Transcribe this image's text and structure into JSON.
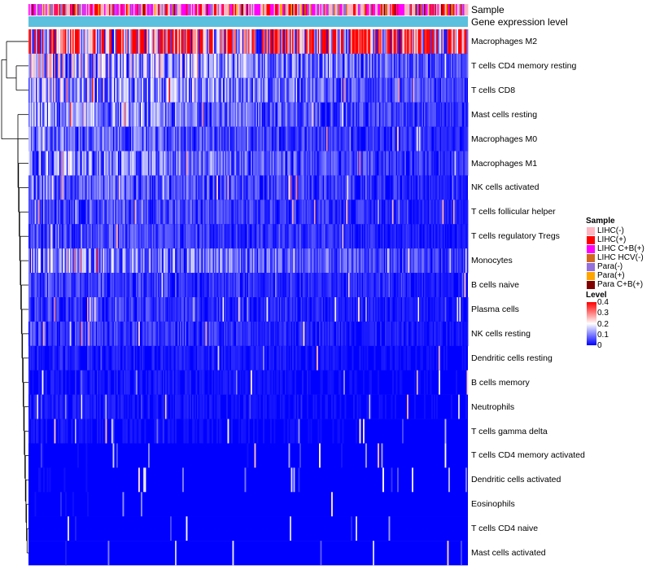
{
  "chart_data": {
    "type": "heatmap",
    "title": "",
    "annotation_rows": [
      "Sample",
      "Gene expression level"
    ],
    "rows": [
      {
        "name": "Macrophages M2",
        "mean": 0.3
      },
      {
        "name": "T cells CD4 memory resting",
        "mean": 0.12
      },
      {
        "name": "T cells CD8",
        "mean": 0.1
      },
      {
        "name": "Mast cells resting",
        "mean": 0.08
      },
      {
        "name": "Macrophages M0",
        "mean": 0.06
      },
      {
        "name": "Macrophages M1",
        "mean": 0.08
      },
      {
        "name": "NK cells activated",
        "mean": 0.06
      },
      {
        "name": "T cells follicular helper",
        "mean": 0.05
      },
      {
        "name": "T cells regulatory  Tregs",
        "mean": 0.045
      },
      {
        "name": "Monocytes",
        "mean": 0.09
      },
      {
        "name": "B cells naive",
        "mean": 0.04
      },
      {
        "name": "Plasma cells",
        "mean": 0.035
      },
      {
        "name": "NK cells resting",
        "mean": 0.035
      },
      {
        "name": "Dendritic cells resting",
        "mean": 0.02
      },
      {
        "name": "B cells memory",
        "mean": 0.015
      },
      {
        "name": "Neutrophils",
        "mean": 0.015
      },
      {
        "name": "T cells gamma delta",
        "mean": 0.01
      },
      {
        "name": "T cells CD4 memory activated",
        "mean": 0.005
      },
      {
        "name": "Dendritic cells activated",
        "mean": 0.005
      },
      {
        "name": "Eosinophils",
        "mean": 0.005
      },
      {
        "name": "T cells CD4 naive",
        "mean": 0.004
      },
      {
        "name": "Mast cells activated",
        "mean": 0.004
      }
    ],
    "sample_legend": {
      "title": "Sample",
      "entries": [
        {
          "label": "LIHC(-)",
          "color": "#ffb6c1"
        },
        {
          "label": "LIHC(+)",
          "color": "#ff0000"
        },
        {
          "label": "LIHC C+B(+)",
          "color": "#ff00ff"
        },
        {
          "label": "LIHC HCV(-)",
          "color": "#d2691e"
        },
        {
          "label": "Para(-)",
          "color": "#9370db"
        },
        {
          "label": "Para(+)",
          "color": "#ffa500"
        },
        {
          "label": "Para C+B(+)",
          "color": "#800000"
        }
      ]
    },
    "level_legend": {
      "title": "Level",
      "ticks": [
        "0.4",
        "0.3",
        "0.2",
        "0.1",
        "0"
      ],
      "range": [
        0,
        0.4
      ],
      "colors": [
        "#0000ff",
        "#ffffff",
        "#ff0000"
      ]
    },
    "gene_expression_color": "#5bc0de",
    "n_samples": 360
  }
}
